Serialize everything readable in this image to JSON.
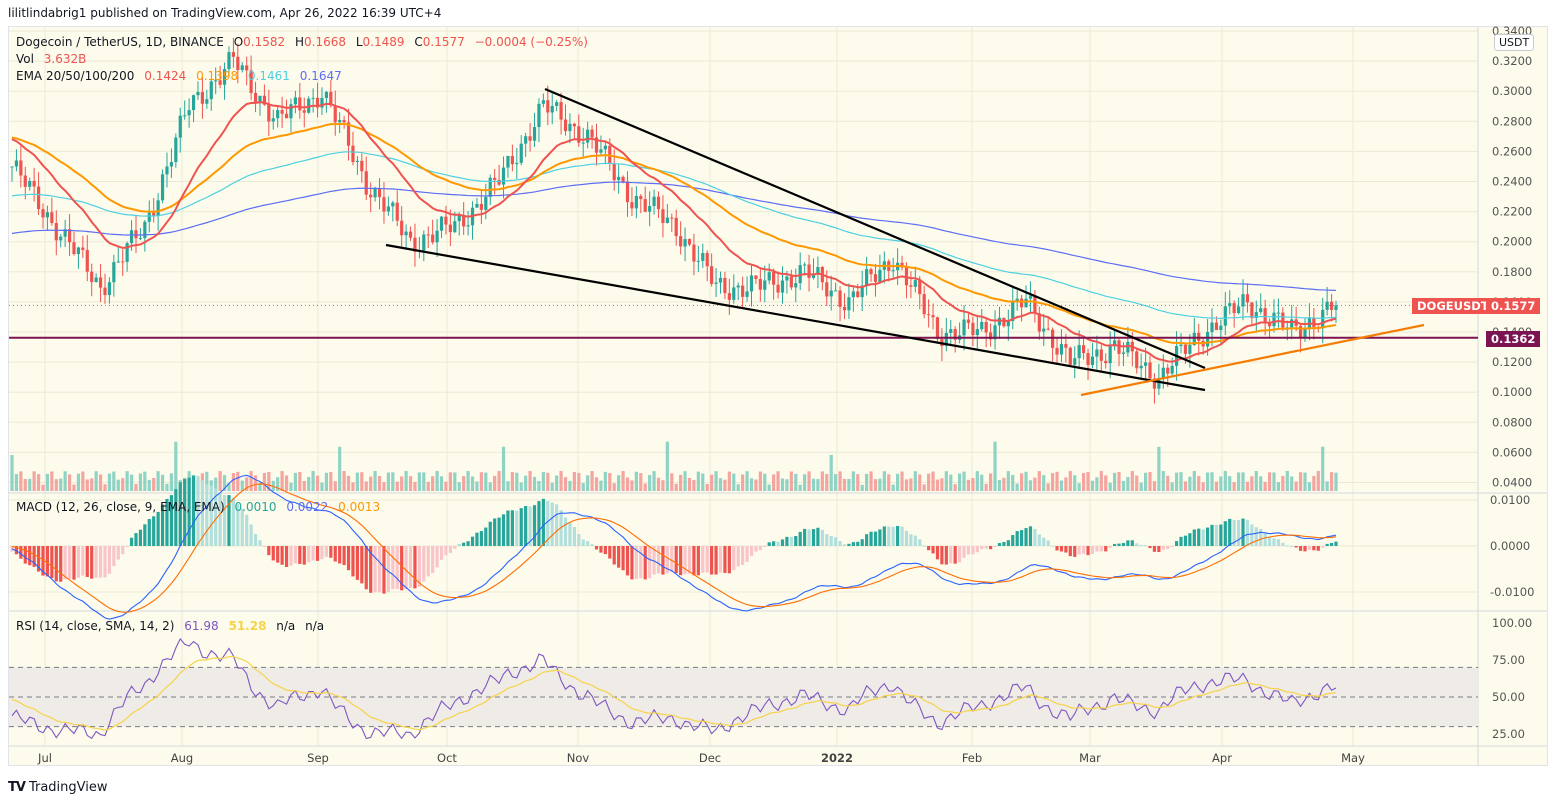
{
  "publisher": "lilitlindabrig1 published on TradingView.com, Apr 26, 2022 16:39 UTC+4",
  "symbol": {
    "title": "Dogecoin / TetherUS, 1D, BINANCE",
    "open_label": "O",
    "open": "0.1582",
    "high_label": "H",
    "high": "0.1668",
    "low_label": "L",
    "low": "0.1489",
    "close_label": "C",
    "close": "0.1577",
    "change": "−0.0004 (−0.25%)"
  },
  "volume": {
    "label": "Vol",
    "value": "3.632B"
  },
  "ema": {
    "label": "EMA 20/50/100/200",
    "ema20": "0.1424",
    "ema50": "0.1398",
    "ema100": "0.1461",
    "ema200": "0.1647"
  },
  "macd": {
    "label": "MACD (12, 26, close, 9, EMA, EMA)",
    "hist": "0.0010",
    "macd": "0.0022",
    "signal": "0.0013"
  },
  "rsi": {
    "label": "RSI (14, close, SMA, 14, 2)",
    "rsi": "61.98",
    "sma": "51.28",
    "na1": "n/a",
    "na2": "n/a"
  },
  "currency_badge": "USDT",
  "price_tags": {
    "symbol": "DOGEUSDT",
    "last": "0.1577",
    "level": "0.1362"
  },
  "footer": {
    "logo": "TV",
    "brand": "TradingView"
  },
  "colors": {
    "bg": "#fdfbec",
    "up": "#26a69a",
    "down": "#ef5350",
    "ema20": "#ef5350",
    "ema50": "#ff9800",
    "ema100": "#4dd0e1",
    "ema200": "#5b6ef5",
    "level": "#7b1450",
    "trend": "#000000",
    "support": "#f57c00",
    "rsi": "#7e57c2",
    "rsi_sma": "#f7d34a"
  },
  "chart_data": [
    {
      "type": "candlestick",
      "title": "Dogecoin / TetherUS, 1D, BINANCE",
      "ylabel": "USDT",
      "ylim": [
        0.03,
        0.34
      ],
      "yticks": [
        "0.3400",
        "0.3200",
        "0.3000",
        "0.2800",
        "0.2600",
        "0.2400",
        "0.2200",
        "0.2000",
        "0.1800",
        "0.1600",
        "0.1400",
        "0.1200",
        "0.1000",
        "0.0800",
        "0.0600",
        "0.0400"
      ],
      "xticks": [
        "Jul",
        "Aug",
        "Sep",
        "Oct",
        "Nov",
        "Dec",
        "2022",
        "Feb",
        "Mar",
        "Apr",
        "May"
      ],
      "last_ohlc": {
        "open": 0.1582,
        "high": 0.1668,
        "low": 0.1489,
        "close": 0.1577
      },
      "approx_closes": [
        {
          "date": "Jul 1",
          "close": 0.25
        },
        {
          "date": "Jul 15",
          "close": 0.21
        },
        {
          "date": "Jul 21",
          "close": 0.17
        },
        {
          "date": "Aug 1",
          "close": 0.21
        },
        {
          "date": "Aug 10",
          "close": 0.29
        },
        {
          "date": "Aug 16",
          "close": 0.32
        },
        {
          "date": "Aug 25",
          "close": 0.28
        },
        {
          "date": "Sep 1",
          "close": 0.3
        },
        {
          "date": "Sep 7",
          "close": 0.24
        },
        {
          "date": "Sep 21",
          "close": 0.2
        },
        {
          "date": "Oct 1",
          "close": 0.21
        },
        {
          "date": "Oct 15",
          "close": 0.24
        },
        {
          "date": "Oct 28",
          "close": 0.29
        },
        {
          "date": "Nov 10",
          "close": 0.27
        },
        {
          "date": "Nov 20",
          "close": 0.23
        },
        {
          "date": "Dec 1",
          "close": 0.21
        },
        {
          "date": "Dec 4",
          "close": 0.17
        },
        {
          "date": "Dec 15",
          "close": 0.17
        },
        {
          "date": "Dec 25",
          "close": 0.18
        },
        {
          "date": "Jan 5",
          "close": 0.16
        },
        {
          "date": "Jan 14",
          "close": 0.19
        },
        {
          "date": "Jan 22",
          "close": 0.14
        },
        {
          "date": "Feb 1",
          "close": 0.14
        },
        {
          "date": "Feb 8",
          "close": 0.16
        },
        {
          "date": "Feb 24",
          "close": 0.12
        },
        {
          "date": "Mar 1",
          "close": 0.13
        },
        {
          "date": "Mar 14",
          "close": 0.11
        },
        {
          "date": "Mar 28",
          "close": 0.14
        },
        {
          "date": "Apr 4",
          "close": 0.16
        },
        {
          "date": "Apr 15",
          "close": 0.14
        },
        {
          "date": "Apr 26",
          "close": 0.1577
        }
      ],
      "indicators": {
        "EMA20": 0.1424,
        "EMA50": 0.1398,
        "EMA100": 0.1461,
        "EMA200": 0.1647
      },
      "annotations": [
        {
          "type": "horizontal_line",
          "value": 0.1362,
          "color": "#7b1450"
        },
        {
          "type": "trendline",
          "label": "falling wedge upper",
          "from": {
            "date": "Oct 27",
            "price": 0.302
          },
          "to": {
            "date": "Mar 28",
            "price": 0.114
          }
        },
        {
          "type": "trendline",
          "label": "falling wedge lower",
          "from": {
            "date": "Sep 18",
            "price": 0.197
          },
          "to": {
            "date": "Apr 1",
            "price": 0.102
          }
        },
        {
          "type": "trendline",
          "label": "rising support",
          "color": "#f57c00",
          "from": {
            "date": "Feb 28",
            "price": 0.098
          },
          "to": {
            "date": "May 10",
            "price": 0.145
          }
        }
      ]
    },
    {
      "type": "bar",
      "title": "Vol",
      "last_value": "3.632B"
    },
    {
      "type": "line",
      "title": "MACD (12, 26, close, 9, EMA, EMA)",
      "ylim": [
        -0.012,
        0.011
      ],
      "yticks": [
        "0.0100",
        "0.0000",
        "-0.0100"
      ],
      "series": [
        {
          "name": "Histogram",
          "last": 0.001
        },
        {
          "name": "MACD",
          "last": 0.0022
        },
        {
          "name": "Signal",
          "last": 0.0013
        }
      ]
    },
    {
      "type": "line",
      "title": "RSI (14, close, SMA, 14, 2)",
      "ylim": [
        18,
        105
      ],
      "yticks": [
        "100.00",
        "75.00",
        "50.00",
        "25.00"
      ],
      "bands": {
        "upper": 70,
        "middle": 50,
        "lower": 30
      },
      "series": [
        {
          "name": "RSI",
          "last": 61.98
        },
        {
          "name": "RSI SMA",
          "last": 51.28
        }
      ]
    }
  ]
}
